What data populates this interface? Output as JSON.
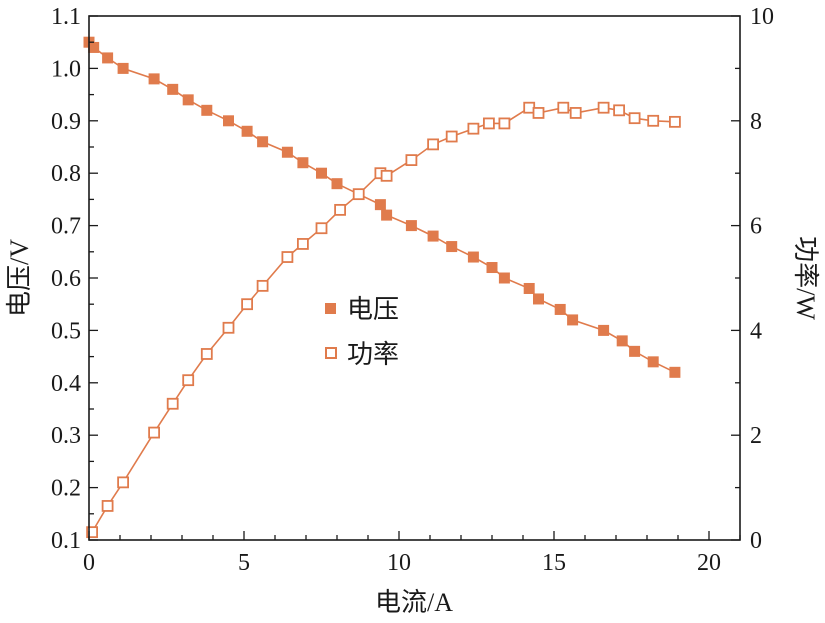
{
  "chart_data": {
    "type": "line",
    "xlabel": "电流/A",
    "ylabel_left": "电压/V",
    "ylabel_right": "功率/W",
    "xlim": [
      0,
      21
    ],
    "ylim_left": [
      0.1,
      1.1
    ],
    "ylim_right": [
      0,
      10
    ],
    "xticks": [
      0,
      5,
      10,
      15,
      20
    ],
    "yticks_left": [
      0.1,
      0.2,
      0.3,
      0.4,
      0.5,
      0.6,
      0.7,
      0.8,
      0.9,
      1.0,
      1.1
    ],
    "yticks_right": [
      0,
      2,
      4,
      6,
      8,
      10
    ],
    "grid": false,
    "legend_position": "center",
    "colors": {
      "series": "#e07b4c",
      "axis": "#1a1a1a"
    },
    "series": [
      {
        "name": "电压",
        "axis": "left",
        "marker": "filled-square",
        "x": [
          0.0,
          0.15,
          0.6,
          1.1,
          2.1,
          2.7,
          3.2,
          3.8,
          4.5,
          5.1,
          5.6,
          6.4,
          6.9,
          7.5,
          8.0,
          8.7,
          9.4,
          9.6,
          10.4,
          11.1,
          11.7,
          12.4,
          13.0,
          13.4,
          14.2,
          14.5,
          15.2,
          15.6,
          16.6,
          17.2,
          17.6,
          18.2,
          18.9
        ],
        "y": [
          1.05,
          1.04,
          1.02,
          1.0,
          0.98,
          0.96,
          0.94,
          0.92,
          0.9,
          0.88,
          0.86,
          0.84,
          0.82,
          0.8,
          0.78,
          0.76,
          0.74,
          0.72,
          0.7,
          0.68,
          0.66,
          0.64,
          0.62,
          0.6,
          0.58,
          0.56,
          0.54,
          0.52,
          0.5,
          0.48,
          0.46,
          0.44,
          0.42
        ]
      },
      {
        "name": "功率",
        "axis": "right",
        "marker": "hollow-square",
        "x": [
          0.1,
          0.6,
          1.1,
          2.1,
          2.7,
          3.2,
          3.8,
          4.5,
          5.1,
          5.6,
          6.4,
          6.9,
          7.5,
          8.1,
          8.7,
          9.4,
          9.6,
          10.4,
          11.1,
          11.7,
          12.4,
          12.9,
          13.4,
          14.2,
          14.5,
          15.3,
          15.7,
          16.6,
          17.1,
          17.6,
          18.2,
          18.9
        ],
        "y": [
          0.15,
          0.65,
          1.1,
          2.05,
          2.6,
          3.05,
          3.55,
          4.05,
          4.5,
          4.85,
          5.4,
          5.65,
          5.95,
          6.3,
          6.6,
          7.0,
          6.95,
          7.25,
          7.55,
          7.7,
          7.85,
          7.95,
          7.95,
          8.25,
          8.15,
          8.25,
          8.15,
          8.25,
          8.2,
          8.05,
          8.0,
          7.98
        ]
      }
    ]
  }
}
